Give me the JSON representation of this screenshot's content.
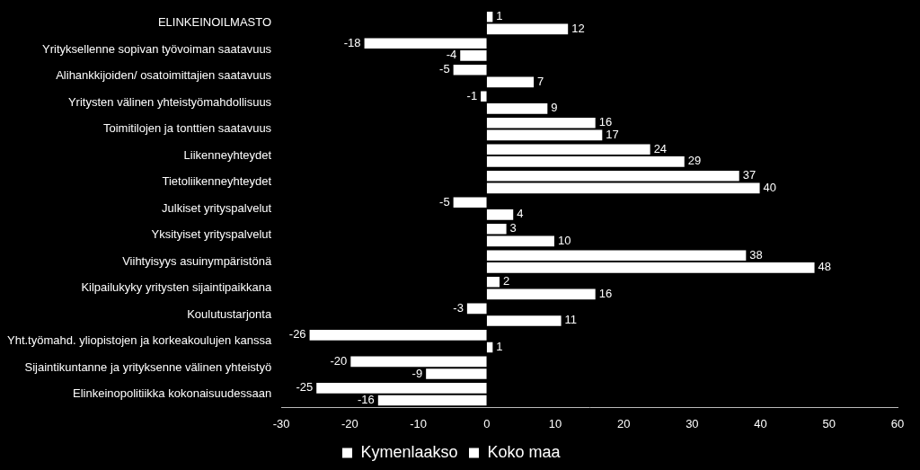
{
  "chart_data": {
    "type": "bar",
    "orientation": "horizontal",
    "categories": [
      "ELINKEINOILMASTO",
      "Yrityksellenne sopivan työvoiman saatavuus",
      "Alihankkijoiden/ osatoimittajien saatavuus",
      "Yritysten välinen yhteistyömahdollisuus",
      "Toimitilojen ja tonttien saatavuus",
      "Liikenneyhteydet",
      "Tietoliikenneyhteydet",
      "Julkiset yrityspalvelut",
      "Yksityiset yrityspalvelut",
      "Viihtyisyys asuinympäristönä",
      "Kilpailukyky yritysten sijaintipaikkana",
      "Koulutustarjonta",
      "Yht.työmahd. yliopistojen ja korkeakoulujen kanssa",
      "Sijaintikuntanne ja yrityksenne välinen yhteistyö",
      "Elinkeinopolitiikka kokonaisuudessaan"
    ],
    "series": [
      {
        "name": "Kymenlaakso",
        "color": "#ffffff",
        "values": [
          1,
          -18,
          -5,
          -1,
          16,
          24,
          37,
          -5,
          3,
          38,
          2,
          -3,
          -26,
          -20,
          -25
        ]
      },
      {
        "name": "Koko maa",
        "color": "#ffffff",
        "values": [
          12,
          -4,
          7,
          9,
          17,
          29,
          40,
          4,
          10,
          48,
          16,
          11,
          1,
          -9,
          -16
        ]
      }
    ],
    "xlim": [
      -30,
      60
    ],
    "xticks": [
      -30,
      -20,
      -10,
      0,
      10,
      20,
      30,
      40,
      50,
      60
    ],
    "grid": false,
    "legend": "bottom",
    "data_labels": true
  }
}
